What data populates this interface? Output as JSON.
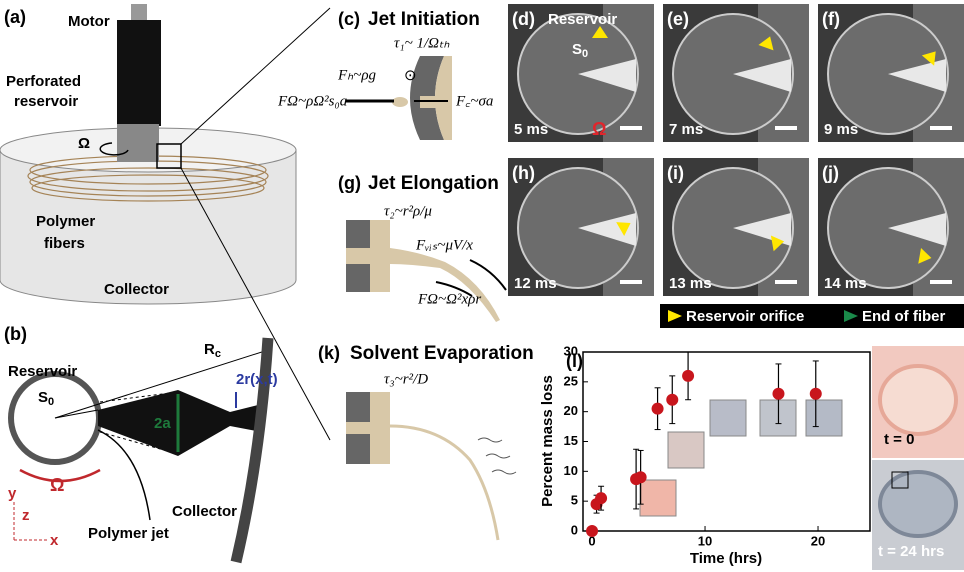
{
  "a": {
    "label": "(a)",
    "motor": "Motor",
    "reservoir_1": "Perforated",
    "reservoir_2": "reservoir",
    "omega": "Ω",
    "fibers_1": "Polymer",
    "fibers_2": "fibers",
    "collector": "Collector"
  },
  "b": {
    "label": "(b)",
    "reservoir": "Reservoir",
    "s_symbol": "S",
    "s_subscript": "0",
    "r_symbol": "R",
    "r_subscript": "c",
    "radius": "2r(x,t)",
    "orifice": "2a",
    "omega": "Ω",
    "axis_y": "y",
    "axis_z": "z",
    "axis_x": "x",
    "jet": "Polymer jet",
    "collector": "Collector"
  },
  "c": {
    "label": "(c)",
    "title": "Jet Initiation",
    "tau": "τ₁~ 1/Ωₜₕ",
    "gravity": "Fₕ~ρg",
    "dot": "⊙",
    "centrifugal": "FΩ~ρΩ²s₀a",
    "surface": "F꜀~σa"
  },
  "g": {
    "label": "(g)",
    "title": "Jet Elongation",
    "tau": "τ₂~r²ρ/μ",
    "viscous": "Fᵥᵢₛ~μV/x",
    "centrifugal": "FΩ~Ω²xρr"
  },
  "k": {
    "label": "(k)",
    "title": "Solvent Evaporation",
    "tau": "τ₃~r²/D"
  },
  "frames": [
    {
      "label": "(d)",
      "time": "5 ms"
    },
    {
      "label": "(e)",
      "time": "7 ms"
    },
    {
      "label": "(f)",
      "time": "9 ms"
    },
    {
      "label": "(h)",
      "time": "12 ms"
    },
    {
      "label": "(i)",
      "time": "13 ms"
    },
    {
      "label": "(j)",
      "time": "14 ms"
    }
  ],
  "frame_d": {
    "reservoir": "Reservoir",
    "s_symbol": "S",
    "s_subscript": "0",
    "omega": "Ω"
  },
  "legend": {
    "orifice": "Reservoir orifice",
    "fiber_end": "End of fiber"
  },
  "photos": {
    "start": "t = 0",
    "end": "t = 24 hrs"
  },
  "chart_data": {
    "type": "scatter",
    "label": "(l)",
    "x_label": "Time (hrs)",
    "y_label": "Percent mass loss",
    "xlim": [
      -0.8,
      24.6
    ],
    "ylim": [
      0,
      30
    ],
    "xticks": [
      0,
      10,
      20
    ],
    "yticks": [
      0,
      5,
      10,
      15,
      20,
      25,
      30
    ],
    "series": [
      {
        "color": "#c8161d",
        "x": [
          0,
          0.4,
          0.8,
          3.9,
          4.3,
          5.8,
          7.1,
          8.5,
          16.5,
          19.8
        ],
        "values": [
          0,
          4.5,
          5.5,
          8.7,
          9,
          20.5,
          22,
          26,
          23,
          23
        ],
        "errors": [
          0.5,
          1.5,
          2,
          5,
          4.5,
          3.5,
          4,
          4,
          5,
          5.5
        ]
      }
    ]
  }
}
